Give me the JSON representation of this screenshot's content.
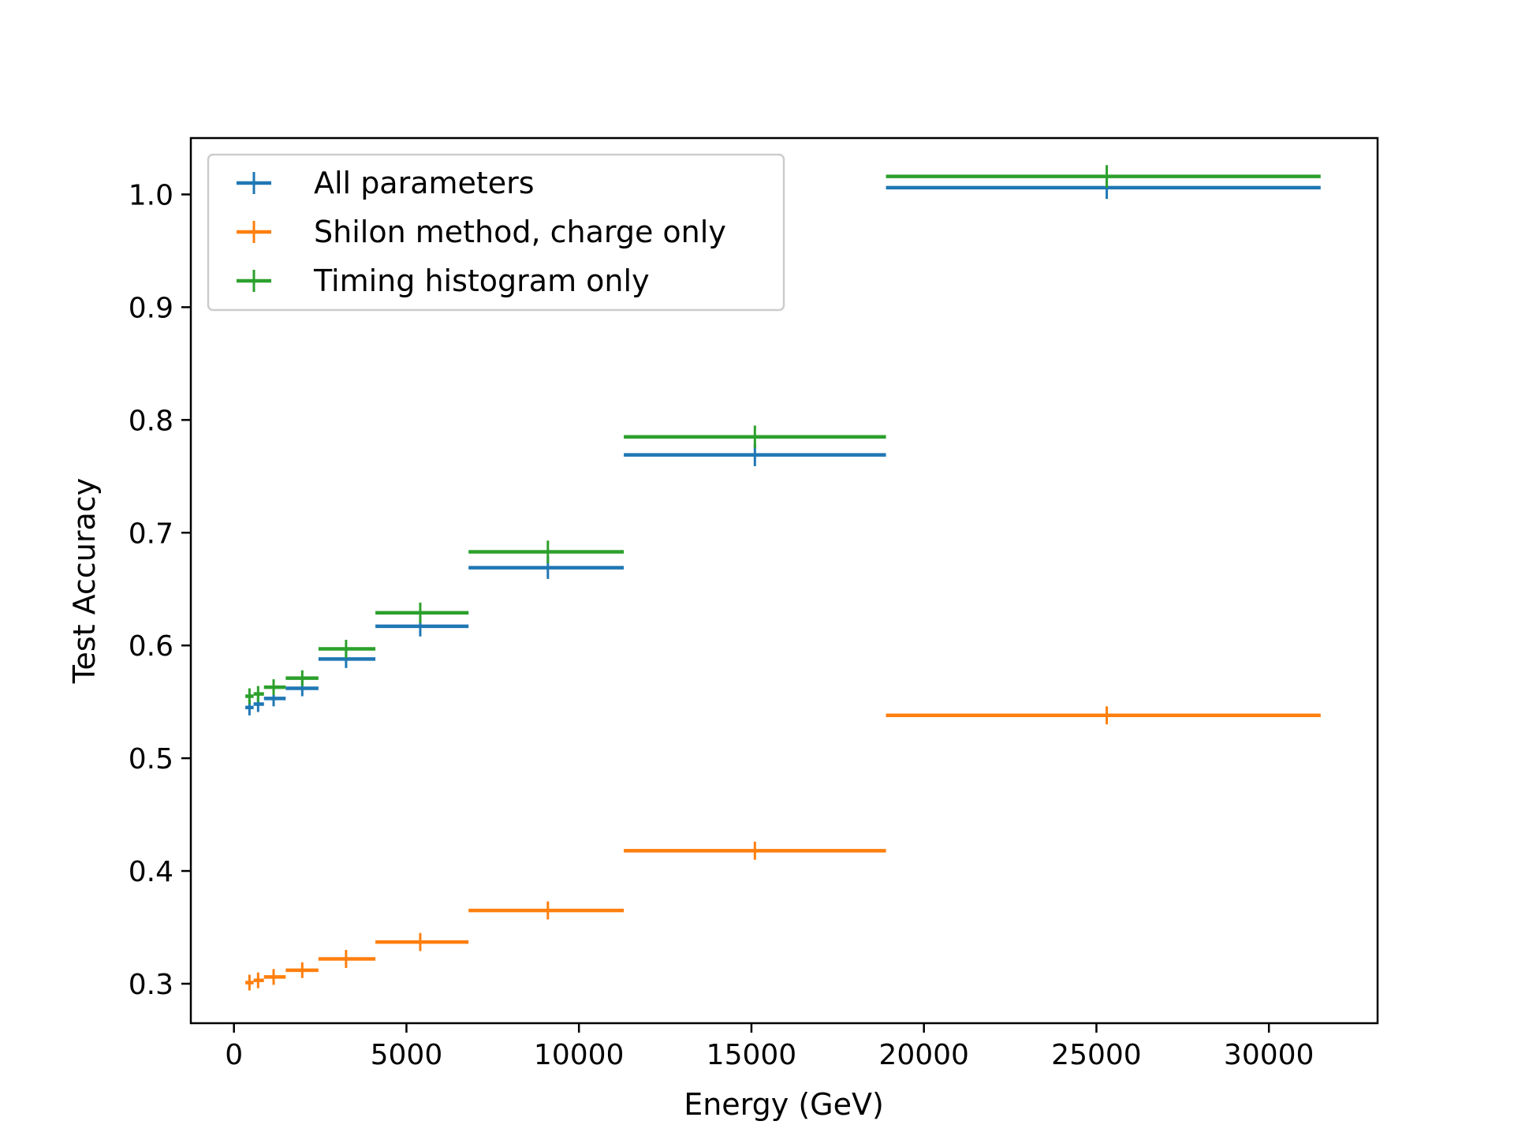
{
  "chart_data": {
    "type": "scatter",
    "title": "",
    "xlabel": "Energy (GeV)",
    "ylabel": "Test Accuracy",
    "xlim": [
      -1250,
      33150
    ],
    "ylim": [
      0.265,
      1.05
    ],
    "xticks": [
      0,
      5000,
      10000,
      15000,
      20000,
      25000,
      30000
    ],
    "yticks": [
      0.3,
      0.4,
      0.5,
      0.6,
      0.7,
      0.8,
      0.9,
      1.0
    ],
    "xtick_labels": [
      "0",
      "5000",
      "10000",
      "15000",
      "20000",
      "25000",
      "30000"
    ],
    "ytick_labels": [
      "0.3",
      "0.4",
      "0.5",
      "0.6",
      "0.7",
      "0.8",
      "0.9",
      "1.0"
    ],
    "grid": false,
    "legend_position": "top-left",
    "series": [
      {
        "name": "All parameters",
        "color": "#1f77b4",
        "points": [
          {
            "x": 450,
            "xlo": 330,
            "xhi": 570,
            "y": 0.545,
            "yerr": 0.007
          },
          {
            "x": 700,
            "xlo": 570,
            "xhi": 870,
            "y": 0.548,
            "yerr": 0.007
          },
          {
            "x": 1150,
            "xlo": 870,
            "xhi": 1500,
            "y": 0.553,
            "yerr": 0.007
          },
          {
            "x": 1980,
            "xlo": 1500,
            "xhi": 2450,
            "y": 0.562,
            "yerr": 0.007
          },
          {
            "x": 3250,
            "xlo": 2450,
            "xhi": 4100,
            "y": 0.588,
            "yerr": 0.008
          },
          {
            "x": 5400,
            "xlo": 4100,
            "xhi": 6800,
            "y": 0.617,
            "yerr": 0.009
          },
          {
            "x": 9100,
            "xlo": 6800,
            "xhi": 11300,
            "y": 0.669,
            "yerr": 0.01
          },
          {
            "x": 15100,
            "xlo": 11300,
            "xhi": 18900,
            "y": 0.769,
            "yerr": 0.01
          },
          {
            "x": 25300,
            "xlo": 18900,
            "xhi": 31500,
            "y": 1.006,
            "yerr": 0.01
          }
        ]
      },
      {
        "name": "Shilon method, charge only",
        "color": "#ff7f0e",
        "points": [
          {
            "x": 450,
            "xlo": 330,
            "xhi": 570,
            "y": 0.301,
            "yerr": 0.007
          },
          {
            "x": 700,
            "xlo": 570,
            "xhi": 870,
            "y": 0.303,
            "yerr": 0.007
          },
          {
            "x": 1150,
            "xlo": 870,
            "xhi": 1500,
            "y": 0.306,
            "yerr": 0.007
          },
          {
            "x": 1980,
            "xlo": 1500,
            "xhi": 2450,
            "y": 0.312,
            "yerr": 0.007
          },
          {
            "x": 3250,
            "xlo": 2450,
            "xhi": 4100,
            "y": 0.322,
            "yerr": 0.008
          },
          {
            "x": 5400,
            "xlo": 4100,
            "xhi": 6800,
            "y": 0.337,
            "yerr": 0.008
          },
          {
            "x": 9100,
            "xlo": 6800,
            "xhi": 11300,
            "y": 0.365,
            "yerr": 0.008
          },
          {
            "x": 15100,
            "xlo": 11300,
            "xhi": 18900,
            "y": 0.418,
            "yerr": 0.008
          },
          {
            "x": 25300,
            "xlo": 18900,
            "xhi": 31500,
            "y": 0.538,
            "yerr": 0.008
          }
        ]
      },
      {
        "name": "Timing histogram only",
        "color": "#2ca02c",
        "points": [
          {
            "x": 450,
            "xlo": 330,
            "xhi": 570,
            "y": 0.555,
            "yerr": 0.007
          },
          {
            "x": 700,
            "xlo": 570,
            "xhi": 870,
            "y": 0.557,
            "yerr": 0.007
          },
          {
            "x": 1150,
            "xlo": 870,
            "xhi": 1500,
            "y": 0.563,
            "yerr": 0.007
          },
          {
            "x": 1980,
            "xlo": 1500,
            "xhi": 2450,
            "y": 0.571,
            "yerr": 0.007
          },
          {
            "x": 3250,
            "xlo": 2450,
            "xhi": 4100,
            "y": 0.597,
            "yerr": 0.008
          },
          {
            "x": 5400,
            "xlo": 4100,
            "xhi": 6800,
            "y": 0.629,
            "yerr": 0.009
          },
          {
            "x": 9100,
            "xlo": 6800,
            "xhi": 11300,
            "y": 0.683,
            "yerr": 0.01
          },
          {
            "x": 15100,
            "xlo": 11300,
            "xhi": 18900,
            "y": 0.785,
            "yerr": 0.01
          },
          {
            "x": 25300,
            "xlo": 18900,
            "xhi": 31500,
            "y": 1.016,
            "yerr": 0.01
          }
        ]
      }
    ]
  }
}
